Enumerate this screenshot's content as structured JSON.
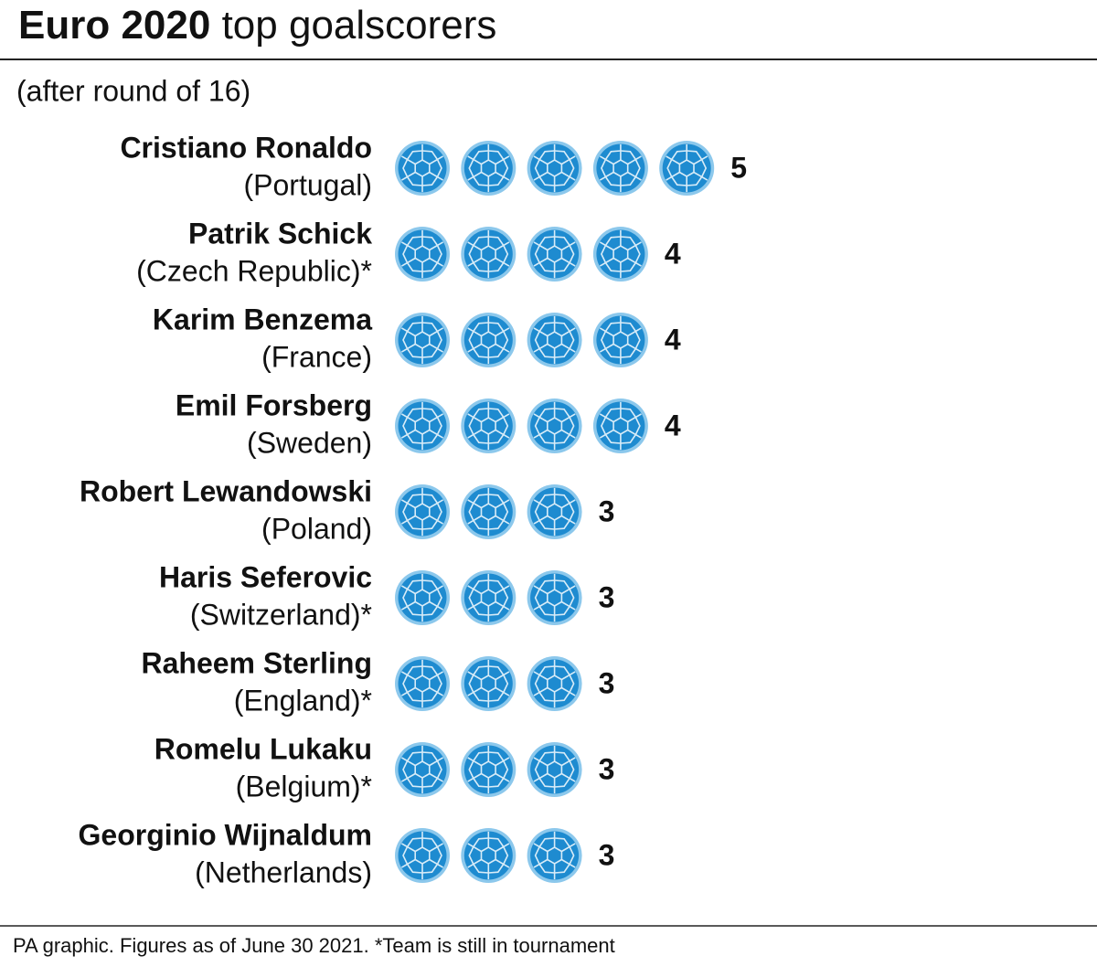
{
  "chart_data": {
    "type": "pictogram",
    "title": [
      "Euro 2020",
      "top goalscorers"
    ],
    "subtitle": "(after round of 16)",
    "categories": [
      "Cristiano Ronaldo",
      "Patrik Schick",
      "Karim Benzema",
      "Emil Forsberg",
      "Robert Lewandowski",
      "Haris Seferovic",
      "Raheem Sterling",
      "Romelu Lukaku",
      "Georginio Wijnaldum"
    ],
    "teams": [
      "(Portugal)",
      "(Czech Republic)*",
      "(France)",
      "(Sweden)",
      "(Poland)",
      "(Switzerland)*",
      "(England)*",
      "(Belgium)*",
      "(Netherlands)"
    ],
    "values": [
      5,
      4,
      4,
      4,
      3,
      3,
      3,
      3,
      3
    ],
    "color": "#1e8bd0",
    "footnote": "PA graphic. Figures as of June 30 2021. *Team is still in tournament"
  }
}
